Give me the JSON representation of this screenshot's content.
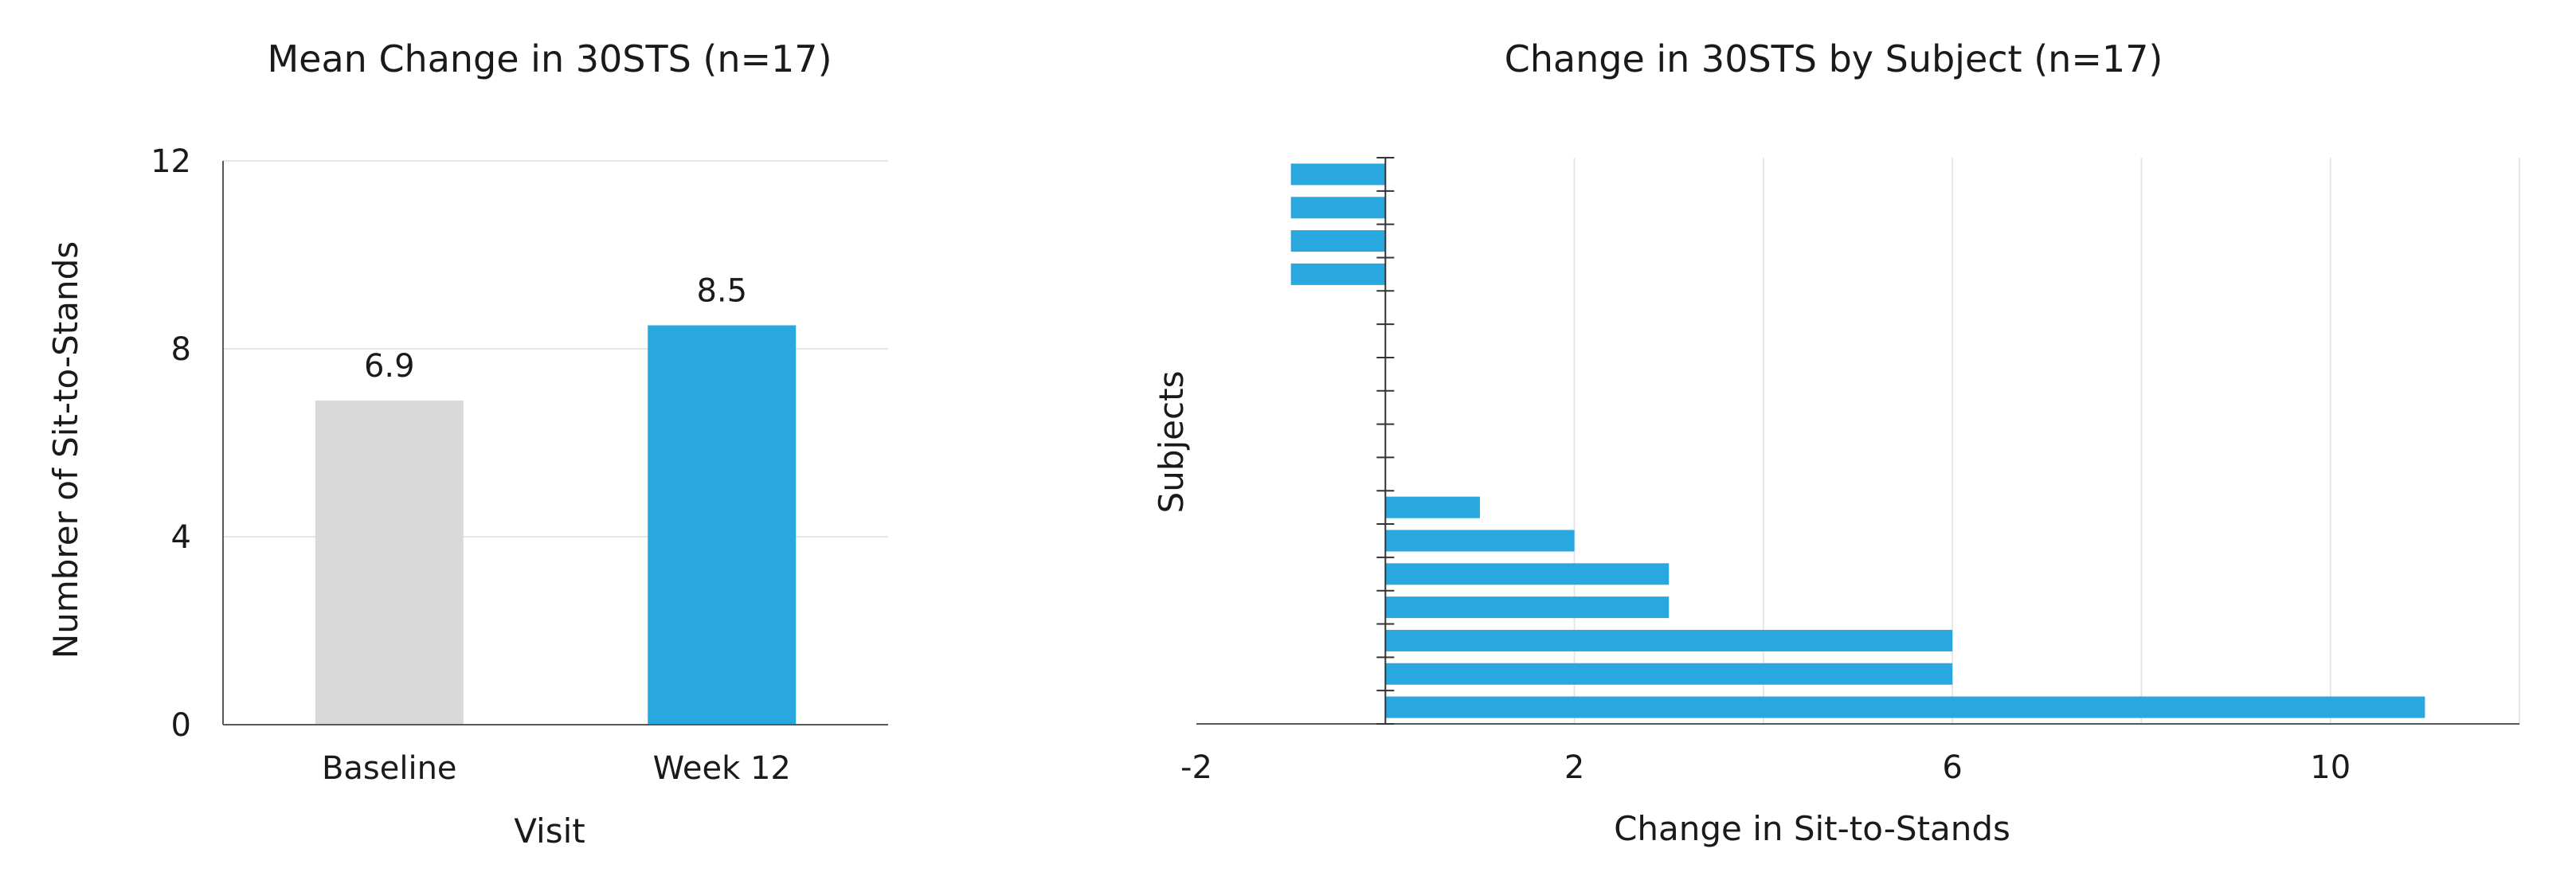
{
  "colors": {
    "baseline_bar": "#d9d9d9",
    "highlight_bar": "#29a8e0",
    "axis": "#595959",
    "grid": "#e6e6e6"
  },
  "chart_data": [
    {
      "type": "bar",
      "title": "Mean Change in 30STS (n=17)",
      "xlabel": "Visit",
      "ylabel": "Numbrer of Sit-to-Stands",
      "categories": [
        "Baseline",
        "Week 12"
      ],
      "values": [
        6.9,
        8.5
      ],
      "data_labels": [
        "6.9",
        "8.5"
      ],
      "bar_colors": [
        "#d9d9d9",
        "#29a8e0"
      ],
      "ylim": [
        0,
        12
      ],
      "yticks": [
        0,
        4,
        8,
        12
      ],
      "grid": true,
      "legend": "none"
    },
    {
      "type": "bar",
      "orientation": "horizontal",
      "title": "Change in 30STS by Subject (n=17)",
      "xlabel": "Change in Sit-to-Stands",
      "ylabel": "Subjects",
      "subjects": 17,
      "values": [
        -1,
        -1,
        -1,
        -1,
        0,
        0,
        0,
        0,
        0,
        0,
        1,
        2,
        3,
        3,
        6,
        6,
        11
      ],
      "xlim": [
        -2,
        12
      ],
      "xticks": [
        -2,
        2,
        6,
        10
      ],
      "grid": true,
      "legend": "none",
      "bar_color": "#29a8e0"
    }
  ]
}
